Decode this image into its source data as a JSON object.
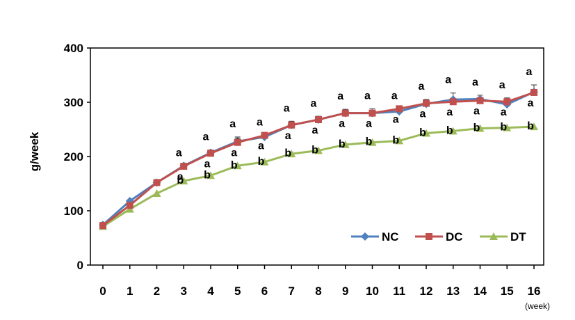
{
  "chart_data": {
    "type": "line",
    "ylabel": "g/week",
    "xlabel": "(week)",
    "ylim": [
      0,
      400
    ],
    "yticks": [
      0,
      100,
      200,
      300,
      400
    ],
    "x": [
      0,
      1,
      2,
      3,
      4,
      5,
      6,
      7,
      8,
      9,
      10,
      11,
      12,
      13,
      14,
      15,
      16
    ],
    "legend_position": "bottom-right",
    "grid": false,
    "series": [
      {
        "name": "NC",
        "color": "#4F81BD",
        "marker": "diamond",
        "values": [
          74,
          118,
          152,
          183,
          207,
          228,
          236,
          258,
          268,
          280,
          280,
          283,
          297,
          305,
          306,
          296,
          319
        ],
        "error": [
          0,
          0,
          0,
          0,
          0,
          8,
          0,
          0,
          6,
          0,
          8,
          0,
          8,
          12,
          7,
          8,
          13
        ]
      },
      {
        "name": "DC",
        "color": "#C0504D",
        "marker": "square",
        "values": [
          73,
          110,
          152,
          182,
          206,
          226,
          239,
          258,
          268,
          280,
          280,
          288,
          298,
          301,
          303,
          301,
          318
        ],
        "error": [
          0,
          0,
          0,
          0,
          6,
          8,
          0,
          7,
          6,
          7,
          0,
          0,
          7,
          0,
          0,
          7,
          0
        ]
      },
      {
        "name": "DT",
        "color": "#9BBB59",
        "marker": "triangle",
        "values": [
          71,
          103,
          132,
          155,
          165,
          183,
          190,
          205,
          211,
          222,
          226,
          229,
          243,
          247,
          252,
          253,
          255
        ],
        "error": [
          0,
          0,
          0,
          0,
          0,
          0,
          0,
          0,
          0,
          0,
          0,
          0,
          0,
          0,
          0,
          0,
          0
        ]
      }
    ],
    "annotations": {
      "upper": [
        {
          "x": 3,
          "text": "a"
        },
        {
          "x": 4,
          "text": "a"
        },
        {
          "x": 5,
          "text": "a"
        },
        {
          "x": 6,
          "text": "a"
        },
        {
          "x": 7,
          "text": "a"
        },
        {
          "x": 8,
          "text": "a"
        },
        {
          "x": 9,
          "text": "a"
        },
        {
          "x": 10,
          "text": "a"
        },
        {
          "x": 11,
          "text": "a"
        },
        {
          "x": 12,
          "text": "a"
        },
        {
          "x": 13,
          "text": "a"
        },
        {
          "x": 14,
          "text": "a"
        },
        {
          "x": 15,
          "text": "a"
        },
        {
          "x": 16,
          "text": "a"
        }
      ],
      "middle": [
        {
          "x": 3,
          "text": "a"
        },
        {
          "x": 4,
          "text": "a"
        },
        {
          "x": 5,
          "text": "a"
        },
        {
          "x": 6,
          "text": "a"
        },
        {
          "x": 7,
          "text": "a"
        },
        {
          "x": 8,
          "text": "a"
        },
        {
          "x": 9,
          "text": "a"
        },
        {
          "x": 10,
          "text": "a"
        },
        {
          "x": 11,
          "text": "a"
        },
        {
          "x": 12,
          "text": "a"
        },
        {
          "x": 13,
          "text": "a"
        },
        {
          "x": 14,
          "text": "a"
        },
        {
          "x": 15,
          "text": "a"
        },
        {
          "x": 16,
          "text": "a"
        }
      ],
      "lower": [
        {
          "x": 3,
          "text": "b"
        },
        {
          "x": 4,
          "text": "b"
        },
        {
          "x": 5,
          "text": "b"
        },
        {
          "x": 6,
          "text": "b"
        },
        {
          "x": 7,
          "text": "b"
        },
        {
          "x": 8,
          "text": "b"
        },
        {
          "x": 9,
          "text": "b"
        },
        {
          "x": 10,
          "text": "b"
        },
        {
          "x": 11,
          "text": "b"
        },
        {
          "x": 12,
          "text": "b"
        },
        {
          "x": 13,
          "text": "b"
        },
        {
          "x": 14,
          "text": "b"
        },
        {
          "x": 15,
          "text": "b"
        },
        {
          "x": 16,
          "text": "b"
        }
      ]
    }
  }
}
